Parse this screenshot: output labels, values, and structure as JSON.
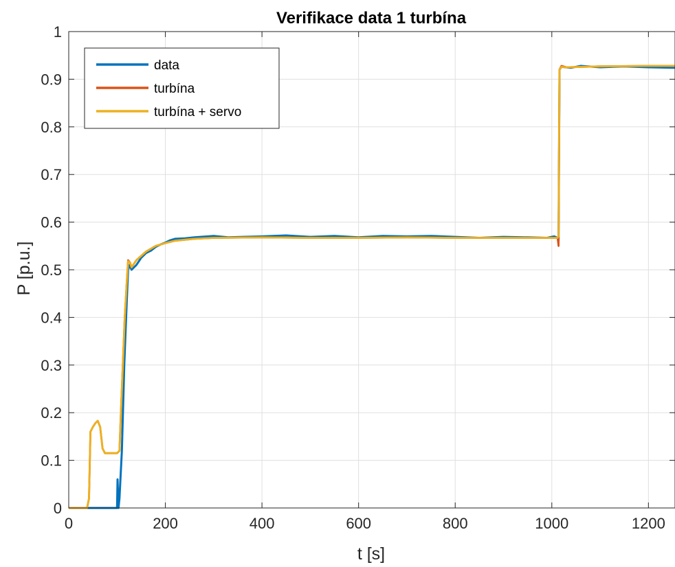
{
  "chart_data": {
    "type": "line",
    "title": "Verifikace data 1 turbína",
    "xlabel": "t [s]",
    "ylabel": "P [p.u.]",
    "xlim": [
      0,
      1255
    ],
    "ylim": [
      0,
      1
    ],
    "xticks": [
      0,
      200,
      400,
      600,
      800,
      1000,
      1200
    ],
    "yticks": [
      0,
      0.1,
      0.2,
      0.3,
      0.4,
      0.5,
      0.6,
      0.7,
      0.8,
      0.9,
      1
    ],
    "xtick_labels": [
      "0",
      "200",
      "400",
      "600",
      "800",
      "1000",
      "1200"
    ],
    "ytick_labels": [
      "0",
      "0.1",
      "0.2",
      "0.3",
      "0.4",
      "0.5",
      "0.6",
      "0.7",
      "0.8",
      "0.9",
      "1"
    ],
    "grid": true,
    "legend_position": "top-left",
    "series": [
      {
        "name": "data",
        "color": "#0072BD",
        "points": [
          [
            0,
            0
          ],
          [
            40,
            0
          ],
          [
            80,
            0
          ],
          [
            100,
            0
          ],
          [
            101,
            0.06
          ],
          [
            103,
            0
          ],
          [
            105,
            0.02
          ],
          [
            110,
            0.12
          ],
          [
            115,
            0.3
          ],
          [
            120,
            0.43
          ],
          [
            123,
            0.5
          ],
          [
            126,
            0.51
          ],
          [
            130,
            0.5
          ],
          [
            135,
            0.505
          ],
          [
            140,
            0.51
          ],
          [
            150,
            0.525
          ],
          [
            160,
            0.535
          ],
          [
            170,
            0.54
          ],
          [
            180,
            0.548
          ],
          [
            190,
            0.553
          ],
          [
            200,
            0.557
          ],
          [
            210,
            0.562
          ],
          [
            220,
            0.565
          ],
          [
            240,
            0.566
          ],
          [
            260,
            0.568
          ],
          [
            300,
            0.571
          ],
          [
            330,
            0.568
          ],
          [
            360,
            0.569
          ],
          [
            400,
            0.57
          ],
          [
            450,
            0.572
          ],
          [
            500,
            0.569
          ],
          [
            550,
            0.571
          ],
          [
            600,
            0.568
          ],
          [
            650,
            0.571
          ],
          [
            700,
            0.57
          ],
          [
            750,
            0.571
          ],
          [
            800,
            0.569
          ],
          [
            850,
            0.567
          ],
          [
            900,
            0.569
          ],
          [
            950,
            0.568
          ],
          [
            990,
            0.567
          ],
          [
            1005,
            0.57
          ],
          [
            1012,
            0.567
          ],
          [
            1014,
            0.56
          ],
          [
            1016,
            0.92
          ],
          [
            1020,
            0.926
          ],
          [
            1040,
            0.924
          ],
          [
            1060,
            0.928
          ],
          [
            1100,
            0.925
          ],
          [
            1150,
            0.927
          ],
          [
            1200,
            0.925
          ],
          [
            1255,
            0.924
          ]
        ]
      },
      {
        "name": "turbína",
        "color": "#D95319",
        "points": [
          [
            0,
            0
          ],
          [
            38,
            0
          ],
          [
            42,
            0.02
          ],
          [
            45,
            0.16
          ],
          [
            50,
            0.17
          ],
          [
            55,
            0.178
          ],
          [
            60,
            0.183
          ],
          [
            65,
            0.17
          ],
          [
            70,
            0.125
          ],
          [
            75,
            0.115
          ],
          [
            90,
            0.115
          ],
          [
            100,
            0.115
          ],
          [
            105,
            0.12
          ],
          [
            108,
            0.2
          ],
          [
            112,
            0.3
          ],
          [
            116,
            0.4
          ],
          [
            120,
            0.47
          ],
          [
            123,
            0.52
          ],
          [
            127,
            0.515
          ],
          [
            130,
            0.505
          ],
          [
            140,
            0.52
          ],
          [
            160,
            0.538
          ],
          [
            180,
            0.55
          ],
          [
            200,
            0.556
          ],
          [
            220,
            0.561
          ],
          [
            260,
            0.565
          ],
          [
            300,
            0.567
          ],
          [
            400,
            0.568
          ],
          [
            500,
            0.567
          ],
          [
            600,
            0.567
          ],
          [
            700,
            0.568
          ],
          [
            800,
            0.567
          ],
          [
            900,
            0.567
          ],
          [
            1000,
            0.567
          ],
          [
            1012,
            0.567
          ],
          [
            1014,
            0.55
          ],
          [
            1016,
            0.92
          ],
          [
            1020,
            0.928
          ],
          [
            1030,
            0.925
          ],
          [
            1100,
            0.927
          ],
          [
            1200,
            0.928
          ],
          [
            1255,
            0.928
          ]
        ]
      },
      {
        "name": "turbína + servo",
        "color": "#EDB120",
        "points": [
          [
            0,
            0
          ],
          [
            38,
            0
          ],
          [
            42,
            0.02
          ],
          [
            45,
            0.16
          ],
          [
            50,
            0.17
          ],
          [
            55,
            0.178
          ],
          [
            60,
            0.183
          ],
          [
            65,
            0.17
          ],
          [
            70,
            0.125
          ],
          [
            75,
            0.115
          ],
          [
            90,
            0.115
          ],
          [
            100,
            0.115
          ],
          [
            105,
            0.12
          ],
          [
            108,
            0.2
          ],
          [
            112,
            0.3
          ],
          [
            116,
            0.4
          ],
          [
            120,
            0.47
          ],
          [
            123,
            0.518
          ],
          [
            127,
            0.515
          ],
          [
            130,
            0.505
          ],
          [
            140,
            0.52
          ],
          [
            160,
            0.538
          ],
          [
            180,
            0.55
          ],
          [
            200,
            0.556
          ],
          [
            220,
            0.561
          ],
          [
            260,
            0.565
          ],
          [
            300,
            0.567
          ],
          [
            400,
            0.568
          ],
          [
            500,
            0.567
          ],
          [
            600,
            0.567
          ],
          [
            700,
            0.568
          ],
          [
            800,
            0.567
          ],
          [
            900,
            0.567
          ],
          [
            1000,
            0.567
          ],
          [
            1012,
            0.567
          ],
          [
            1014,
            0.57
          ],
          [
            1016,
            0.92
          ],
          [
            1020,
            0.926
          ],
          [
            1030,
            0.925
          ],
          [
            1100,
            0.927
          ],
          [
            1200,
            0.928
          ],
          [
            1255,
            0.928
          ]
        ]
      }
    ]
  }
}
